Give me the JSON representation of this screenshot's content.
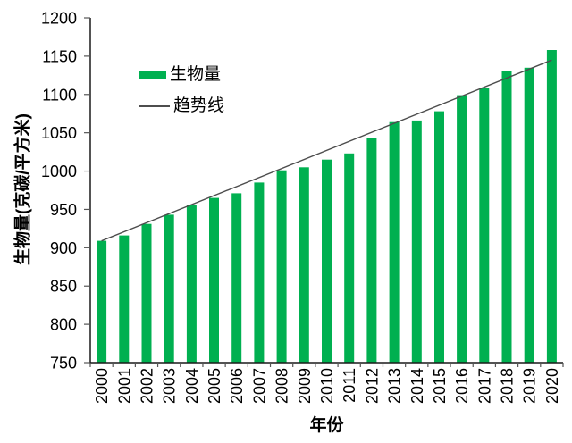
{
  "chart_data": {
    "type": "bar",
    "title": "",
    "xlabel": "年份",
    "ylabel": "生物量(克碳/平方米)",
    "categories": [
      "2000",
      "2001",
      "2002",
      "2003",
      "2004",
      "2005",
      "2006",
      "2007",
      "2008",
      "2009",
      "2010",
      "2011",
      "2012",
      "2013",
      "2014",
      "2015",
      "2016",
      "2017",
      "2018",
      "2019",
      "2020"
    ],
    "series": [
      {
        "name": "生物量",
        "type": "bar",
        "color": "#00B050",
        "values": [
          909,
          916,
          931,
          943,
          956,
          965,
          971,
          985,
          1001,
          1005,
          1015,
          1023,
          1043,
          1064,
          1066,
          1078,
          1099,
          1108,
          1131,
          1135,
          1158
        ]
      },
      {
        "name": "趋势线",
        "type": "line",
        "color": "#4d4d4d",
        "start_value": 909,
        "end_value": 1145
      }
    ],
    "ylim": [
      750,
      1200
    ],
    "ytick_step": 50,
    "grid": false,
    "legend_position": "inside-upper-left",
    "axis_color": "#1a1a1a"
  }
}
